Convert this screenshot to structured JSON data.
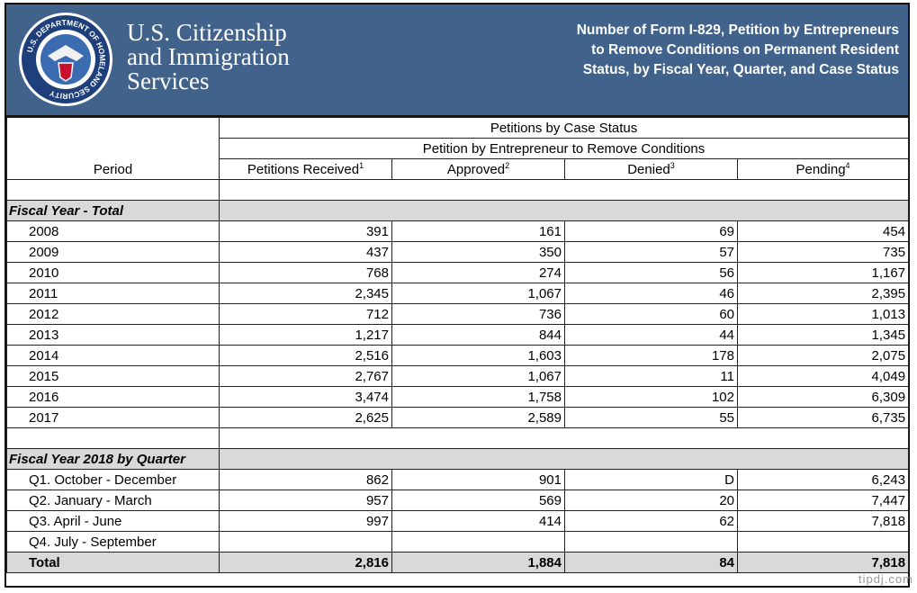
{
  "header": {
    "seal_text": "U.S. DEPARTMENT OF HOMELAND SECURITY",
    "agency_name": [
      "U.S. Citizenship",
      "and Immigration",
      "Services"
    ],
    "title": [
      "Number of Form I-829, Petition by Entrepreneurs",
      "to Remove Conditions on Permanent Resident",
      "Status, by Fiscal Year, Quarter, and Case Status"
    ]
  },
  "table": {
    "group_header": "Petitions by Case Status",
    "subgroup_header": "Petition by Entrepreneur to Remove Conditions",
    "period_header": "Period",
    "columns": [
      {
        "label": "Petitions Received",
        "note": "1"
      },
      {
        "label": "Approved",
        "note": "2"
      },
      {
        "label": "Denied",
        "note": "3"
      },
      {
        "label": "Pending",
        "note": "4"
      }
    ],
    "sections": [
      {
        "title": "Fiscal Year - Total",
        "rows": [
          {
            "period": "2008",
            "values": [
              "391",
              "161",
              "69",
              "454"
            ]
          },
          {
            "period": "2009",
            "values": [
              "437",
              "350",
              "57",
              "735"
            ]
          },
          {
            "period": "2010",
            "values": [
              "768",
              "274",
              "56",
              "1,167"
            ]
          },
          {
            "period": "2011",
            "values": [
              "2,345",
              "1,067",
              "46",
              "2,395"
            ]
          },
          {
            "period": "2012",
            "values": [
              "712",
              "736",
              "60",
              "1,013"
            ]
          },
          {
            "period": "2013",
            "values": [
              "1,217",
              "844",
              "44",
              "1,345"
            ]
          },
          {
            "period": "2014",
            "values": [
              "2,516",
              "1,603",
              "178",
              "2,075"
            ]
          },
          {
            "period": "2015",
            "values": [
              "2,767",
              "1,067",
              "11",
              "4,049"
            ]
          },
          {
            "period": "2016",
            "values": [
              "3,474",
              "1,758",
              "102",
              "6,309"
            ]
          },
          {
            "period": "2017",
            "values": [
              "2,625",
              "2,589",
              "55",
              "6,735"
            ]
          }
        ]
      },
      {
        "title": "Fiscal Year 2018 by Quarter",
        "rows": [
          {
            "period": "Q1. October - December",
            "values": [
              "862",
              "901",
              "D",
              "6,243"
            ]
          },
          {
            "period": "Q2. January - March",
            "values": [
              "957",
              "569",
              "20",
              "7,447"
            ]
          },
          {
            "period": "Q3. April - June",
            "values": [
              "997",
              "414",
              "62",
              "7,818"
            ]
          },
          {
            "period": "Q4. July - September",
            "values": [
              null,
              null,
              null,
              null
            ]
          }
        ]
      }
    ],
    "total": {
      "period": "Total",
      "values": [
        "2,816",
        "1,884",
        "84",
        "7,818"
      ]
    }
  },
  "watermark": "tipdj.com"
}
